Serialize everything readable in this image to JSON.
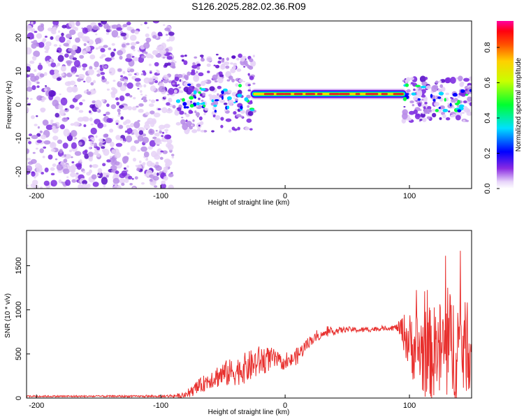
{
  "title": "S126.2025.282.02.36.R09",
  "colors": {
    "line": "#e8302e",
    "blob_faint": "#e6d2f7",
    "blob_mid": "#b98ee8",
    "blob_strong": "#7e2ee0",
    "blob_deep": "#5a10c8"
  },
  "chart_data": [
    {
      "type": "heatmap",
      "title": "",
      "xlabel": "Height of straight line (km)",
      "ylabel": "Frequency (Hz)",
      "xlim": [
        -208,
        150
      ],
      "ylim": [
        -25,
        25
      ],
      "xticks": [
        -200,
        -100,
        0,
        100
      ],
      "yticks": [
        -20,
        -10,
        0,
        10,
        20
      ],
      "colorbar": {
        "label": "Normalized spectral amplitude",
        "range": [
          0.0,
          0.95
        ],
        "ticks": [
          0.0,
          0.2,
          0.4,
          0.6,
          0.8
        ]
      },
      "signal": {
        "x_range": [
          -25,
          95
        ],
        "frequency_hz": 3.2,
        "peak_amplitude": 0.9
      },
      "noise_region": {
        "x_range": [
          -208,
          -90
        ],
        "frequency_range": [
          -25,
          25
        ]
      },
      "transition_region": {
        "x_range": [
          -90,
          -25
        ],
        "frequency_range": [
          -8,
          15
        ]
      },
      "upper_noise_region": {
        "x_range": [
          95,
          150
        ],
        "frequency_range": [
          -5,
          8
        ]
      }
    },
    {
      "type": "line",
      "title": "",
      "xlabel": "Height of straight line (km)",
      "ylabel": "SNR (10 * v/v)",
      "xlim": [
        -208,
        150
      ],
      "ylim": [
        0,
        1900
      ],
      "xticks": [
        -200,
        -100,
        0,
        100
      ],
      "yticks": [
        0,
        500,
        1000,
        1500
      ],
      "series": [
        {
          "name": "SNR",
          "x": [
            -208,
            -150,
            -100,
            -80,
            -70,
            -60,
            -50,
            -40,
            -30,
            -20,
            -10,
            0,
            10,
            20,
            30,
            40,
            50,
            60,
            70,
            80,
            90,
            95,
            100,
            110,
            120,
            130,
            140,
            150
          ],
          "y": [
            20,
            20,
            20,
            30,
            120,
            220,
            270,
            300,
            350,
            420,
            450,
            380,
            480,
            650,
            720,
            760,
            780,
            770,
            780,
            790,
            800,
            760,
            620,
            520,
            500,
            560,
            600,
            520
          ],
          "spread": [
            10,
            10,
            10,
            30,
            80,
            110,
            150,
            160,
            180,
            180,
            120,
            60,
            100,
            60,
            40,
            40,
            30,
            30,
            30,
            20,
            40,
            200,
            350,
            500,
            550,
            650,
            650,
            400
          ]
        }
      ]
    }
  ]
}
